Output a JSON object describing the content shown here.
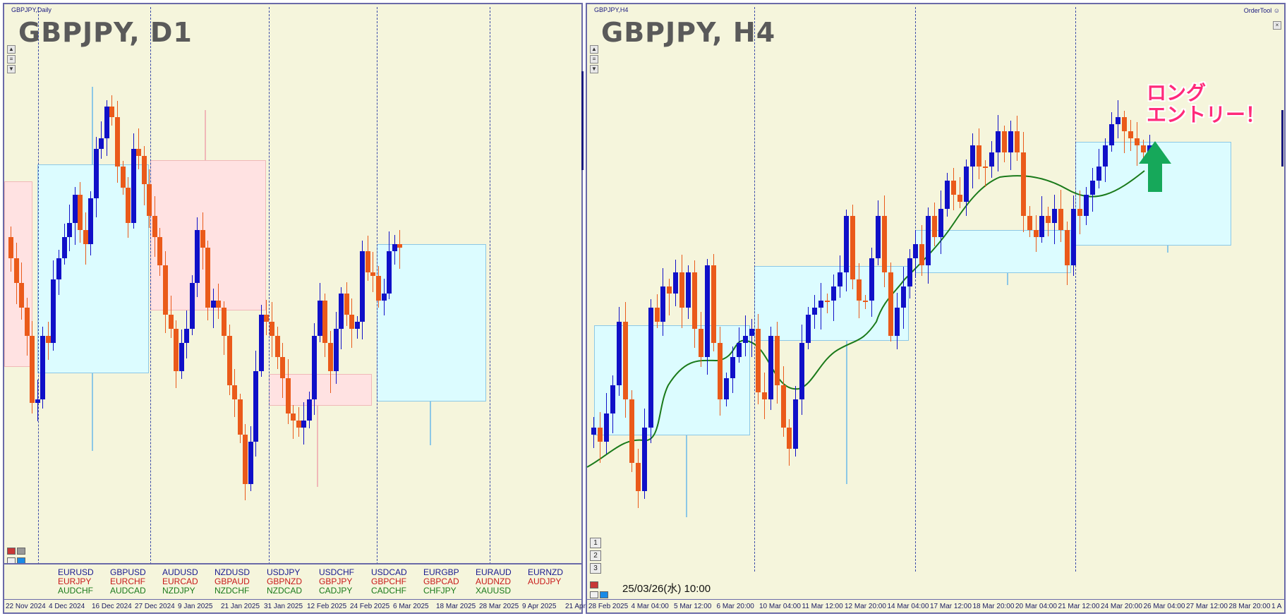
{
  "left": {
    "window_title": "GBPJPY,Daily",
    "symbol": "GBPJPY, D1",
    "x_labels": [
      "22 Nov 2024",
      "4 Dec 2024",
      "16 Dec 2024",
      "27 Dec 2024",
      "9 Jan 2025",
      "21 Jan 2025",
      "31 Jan 2025",
      "12 Feb 2025",
      "24 Feb 2025",
      "6 Mar 2025",
      "18 Mar 2025",
      "28 Mar 2025",
      "9 Apr 2025",
      "21 Apr"
    ],
    "pairs": [
      [
        {
          "t": "EURUSD",
          "c": "#1a1a90"
        },
        {
          "t": "EURJPY",
          "c": "#c81a1a"
        },
        {
          "t": "AUDCHF",
          "c": "#1a7a1a"
        }
      ],
      [
        {
          "t": "GBPUSD",
          "c": "#1a1a90"
        },
        {
          "t": "EURCHF",
          "c": "#c81a1a"
        },
        {
          "t": "AUDCAD",
          "c": "#1a7a1a"
        }
      ],
      [
        {
          "t": "AUDUSD",
          "c": "#1a1a90"
        },
        {
          "t": "EURCAD",
          "c": "#c81a1a"
        },
        {
          "t": "NZDJPY",
          "c": "#1a7a1a"
        }
      ],
      [
        {
          "t": "NZDUSD",
          "c": "#1a1a90"
        },
        {
          "t": "GBPAUD",
          "c": "#c81a1a"
        },
        {
          "t": "NZDCHF",
          "c": "#1a7a1a"
        }
      ],
      [
        {
          "t": "USDJPY",
          "c": "#1a1a90"
        },
        {
          "t": "GBPNZD",
          "c": "#c81a1a"
        },
        {
          "t": "NZDCAD",
          "c": "#1a7a1a"
        }
      ],
      [
        {
          "t": "USDCHF",
          "c": "#1a1a90"
        },
        {
          "t": "GBPJPY",
          "c": "#c81a1a"
        },
        {
          "t": "CADJPY",
          "c": "#1a7a1a"
        }
      ],
      [
        {
          "t": "USDCAD",
          "c": "#1a1a90"
        },
        {
          "t": "GBPCHF",
          "c": "#c81a1a"
        },
        {
          "t": "CADCHF",
          "c": "#1a7a1a"
        }
      ],
      [
        {
          "t": "EURGBP",
          "c": "#1a1a90"
        },
        {
          "t": "GBPCAD",
          "c": "#c81a1a"
        },
        {
          "t": "CHFJPY",
          "c": "#1a7a1a"
        }
      ],
      [
        {
          "t": "EURAUD",
          "c": "#1a1a90"
        },
        {
          "t": "AUDNZD",
          "c": "#c81a1a"
        },
        {
          "t": "XAUUSD",
          "c": "#1a7a1a"
        }
      ],
      [
        {
          "t": "EURNZD",
          "c": "#1a1a90"
        },
        {
          "t": "AUDJPY",
          "c": "#c81a1a"
        }
      ]
    ]
  },
  "right": {
    "window_title": "GBPJPY,H4",
    "symbol": "GBPJPY, H4",
    "order_tool": "OrderTool",
    "x_labels": [
      "28 Feb 2025",
      "4 Mar 04:00",
      "5 Mar 12:00",
      "6 Mar 20:00",
      "10 Mar 04:00",
      "11 Mar 12:00",
      "12 Mar 20:00",
      "14 Mar 04:00",
      "17 Mar 12:00",
      "18 Mar 20:00",
      "20 Mar 04:00",
      "21 Mar 12:00",
      "24 Mar 20:00",
      "26 Mar 04:00",
      "27 Mar 12:00",
      "28 Mar 20:00",
      "1 A"
    ],
    "date_stamp": "25/03/26(水) 10:00",
    "annotation_line1": "ロング",
    "annotation_line2": "エントリー！",
    "buttons": [
      "1",
      "2",
      "3"
    ]
  },
  "colors": {
    "bull": "#1010c8",
    "bear": "#ea5a1a",
    "ma": "#1a7a1a",
    "arrow": "#16a85a",
    "annotation": "#ff2a7a"
  }
}
